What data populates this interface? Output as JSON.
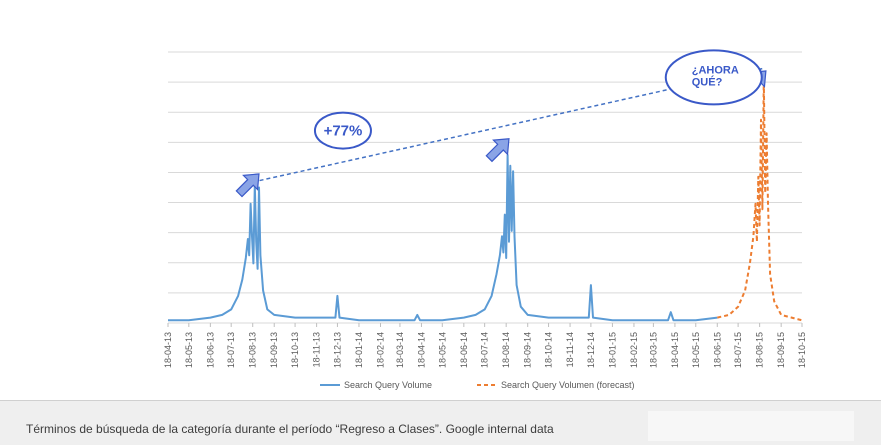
{
  "chart_data": {
    "type": "line",
    "title": "",
    "xlabel": "",
    "ylabel": "",
    "x_tick_labels": [
      "18-04-13",
      "18-05-13",
      "18-06-13",
      "18-07-13",
      "18-08-13",
      "18-09-13",
      "18-10-13",
      "18-11-13",
      "18-12-13",
      "18-01-14",
      "18-02-14",
      "18-03-14",
      "18-04-14",
      "18-05-14",
      "18-06-14",
      "18-07-14",
      "18-08-14",
      "18-09-14",
      "18-10-14",
      "18-11-14",
      "18-12-14",
      "18-01-15",
      "18-02-15",
      "18-03-15",
      "18-04-15",
      "18-05-15",
      "18-06-15",
      "18-07-15",
      "18-08-15",
      "18-09-15",
      "18-10-15"
    ],
    "ylim": [
      0,
      100
    ],
    "grid": true,
    "legend_position": "bottom",
    "series": [
      {
        "name": "Search Query Volume",
        "color": "#5b9bd5",
        "style": "solid",
        "points": [
          [
            "2013-04-18",
            1
          ],
          [
            "2013-05-18",
            1
          ],
          [
            "2013-06-18",
            2
          ],
          [
            "2013-07-05",
            3
          ],
          [
            "2013-07-18",
            5
          ],
          [
            "2013-07-28",
            10
          ],
          [
            "2013-08-03",
            16
          ],
          [
            "2013-08-08",
            24
          ],
          [
            "2013-08-11",
            31
          ],
          [
            "2013-08-13",
            25
          ],
          [
            "2013-08-15",
            44
          ],
          [
            "2013-08-17",
            32
          ],
          [
            "2013-08-19",
            22
          ],
          [
            "2013-08-21",
            51
          ],
          [
            "2013-08-23",
            30
          ],
          [
            "2013-08-25",
            20
          ],
          [
            "2013-08-27",
            50
          ],
          [
            "2013-08-29",
            25
          ],
          [
            "2013-09-02",
            12
          ],
          [
            "2013-09-08",
            5
          ],
          [
            "2013-09-18",
            3
          ],
          [
            "2013-10-18",
            2
          ],
          [
            "2013-11-18",
            2
          ],
          [
            "2013-12-10",
            2
          ],
          [
            "2013-12-15",
            2
          ],
          [
            "2013-12-18",
            10
          ],
          [
            "2013-12-21",
            2
          ],
          [
            "2014-01-18",
            1
          ],
          [
            "2014-02-18",
            1
          ],
          [
            "2014-03-18",
            1
          ],
          [
            "2014-04-08",
            1
          ],
          [
            "2014-04-12",
            3
          ],
          [
            "2014-04-16",
            1
          ],
          [
            "2014-05-18",
            1
          ],
          [
            "2014-06-18",
            2
          ],
          [
            "2014-07-05",
            3
          ],
          [
            "2014-07-18",
            5
          ],
          [
            "2014-07-28",
            10
          ],
          [
            "2014-08-04",
            18
          ],
          [
            "2014-08-09",
            25
          ],
          [
            "2014-08-12",
            32
          ],
          [
            "2014-08-14",
            26
          ],
          [
            "2014-08-16",
            40
          ],
          [
            "2014-08-18",
            24
          ],
          [
            "2014-08-20",
            62
          ],
          [
            "2014-08-22",
            30
          ],
          [
            "2014-08-24",
            58
          ],
          [
            "2014-08-26",
            34
          ],
          [
            "2014-08-28",
            56
          ],
          [
            "2014-08-30",
            32
          ],
          [
            "2014-09-02",
            14
          ],
          [
            "2014-09-08",
            6
          ],
          [
            "2014-09-18",
            3
          ],
          [
            "2014-10-18",
            2
          ],
          [
            "2014-11-18",
            2
          ],
          [
            "2014-12-10",
            2
          ],
          [
            "2014-12-15",
            2
          ],
          [
            "2014-12-18",
            14
          ],
          [
            "2014-12-21",
            2
          ],
          [
            "2015-01-18",
            1
          ],
          [
            "2015-02-18",
            1
          ],
          [
            "2015-03-18",
            1
          ],
          [
            "2015-04-08",
            1
          ],
          [
            "2015-04-12",
            4
          ],
          [
            "2015-04-16",
            1
          ],
          [
            "2015-05-18",
            1
          ],
          [
            "2015-06-18",
            2
          ]
        ]
      },
      {
        "name": "Search Query Volumen (forecast)",
        "color": "#ed7d31",
        "style": "dashed",
        "points": [
          [
            "2015-06-18",
            2
          ],
          [
            "2015-07-05",
            3
          ],
          [
            "2015-07-18",
            6
          ],
          [
            "2015-07-28",
            12
          ],
          [
            "2015-08-04",
            22
          ],
          [
            "2015-08-09",
            32
          ],
          [
            "2015-08-12",
            44
          ],
          [
            "2015-08-14",
            30
          ],
          [
            "2015-08-16",
            54
          ],
          [
            "2015-08-18",
            36
          ],
          [
            "2015-08-20",
            75
          ],
          [
            "2015-08-22",
            42
          ],
          [
            "2015-08-24",
            90
          ],
          [
            "2015-08-26",
            48
          ],
          [
            "2015-08-28",
            70
          ],
          [
            "2015-08-30",
            44
          ],
          [
            "2015-09-02",
            18
          ],
          [
            "2015-09-08",
            8
          ],
          [
            "2015-09-18",
            3
          ],
          [
            "2015-10-18",
            1
          ]
        ]
      }
    ],
    "annotations": {
      "trend_line": {
        "from": [
          "2013-08-18",
          52
        ],
        "to": [
          "2015-08-24",
          94
        ],
        "color": "#4472c4",
        "style": "dashed"
      },
      "callouts": [
        {
          "text": "+77%",
          "near": [
            "2014-01-18",
            71
          ]
        },
        {
          "text_lines": [
            "¿AHORA",
            "QUÉ?"
          ],
          "near": [
            "2015-05-18",
            98
          ]
        }
      ],
      "arrows_point_to": [
        [
          "2013-08-27",
          55
        ],
        [
          "2014-08-22",
          68
        ],
        [
          "2015-08-27",
          93
        ]
      ]
    }
  },
  "caption": {
    "text": "Términos de búsqueda de la categoría durante el período “Regreso a Clases”. Google internal data"
  },
  "colors": {
    "accent": "#3a59c8",
    "arrow_fill": "#8aa4e6",
    "callout_stroke": "#3a59c8",
    "grid": "#d9d9d9"
  }
}
